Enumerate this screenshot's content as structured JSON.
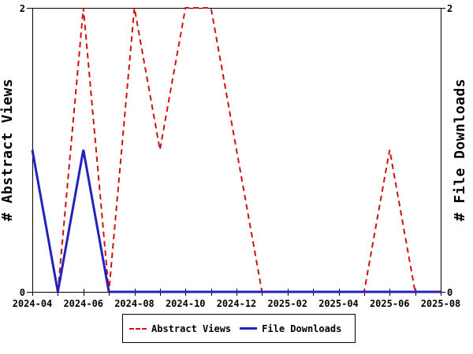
{
  "chart_data": {
    "type": "line",
    "title": "",
    "categories": [
      "2024-04",
      "2024-05",
      "2024-06",
      "2024-07",
      "2024-08",
      "2024-09",
      "2024-10",
      "2024-11",
      "2024-12",
      "2025-01",
      "2025-02",
      "2025-03",
      "2025-04",
      "2025-05",
      "2025-06",
      "2025-07",
      "2025-08"
    ],
    "x_tick_labels": [
      "2024-04",
      "2024-06",
      "2024-08",
      "2024-10",
      "2024-12",
      "2025-02",
      "2025-04",
      "2025-06",
      "2025-08"
    ],
    "series": [
      {
        "name": "Abstract Views",
        "style": "dashed",
        "color": "#cc1111",
        "values": [
          null,
          0,
          2,
          0,
          2,
          1,
          2,
          2,
          1,
          0,
          0,
          0,
          0,
          0,
          1,
          0,
          0
        ]
      },
      {
        "name": "File Downloads",
        "style": "solid",
        "color": "#2222bb",
        "values": [
          1,
          0,
          1,
          0,
          0,
          0,
          0,
          0,
          0,
          0,
          0,
          0,
          0,
          0,
          0,
          0,
          0
        ]
      }
    ],
    "ylabel_left": "# Abstract Views",
    "ylabel_right": "# File Downloads",
    "ylim": [
      0,
      2
    ],
    "y_ticks": [
      0,
      2
    ],
    "grid": false,
    "frame": true,
    "legend_position": "bottom-center"
  },
  "colors": {
    "background": "#ffffff",
    "axis": "#000000",
    "text": "#000000",
    "abstract_views": "#cc1111",
    "file_downloads": "#2222bb"
  }
}
